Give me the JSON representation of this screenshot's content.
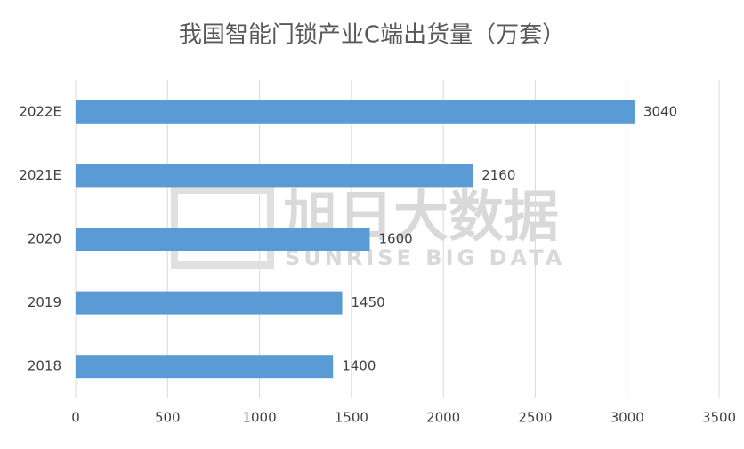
{
  "chart_data": {
    "type": "hbar",
    "title": "我国智能门锁产业C端出货量（万套）",
    "categories": [
      "2022E",
      "2021E",
      "2020",
      "2019",
      "2018"
    ],
    "values": [
      3040,
      2160,
      1600,
      1450,
      1400
    ],
    "color": "#5b9bd5",
    "xlim": [
      0,
      3500
    ],
    "xticks": [
      0,
      500,
      1000,
      1500,
      2000,
      2500,
      3000,
      3500
    ],
    "grid": true,
    "watermark": [
      "旭日大数据",
      "SUNRISE BIG DATA"
    ]
  }
}
